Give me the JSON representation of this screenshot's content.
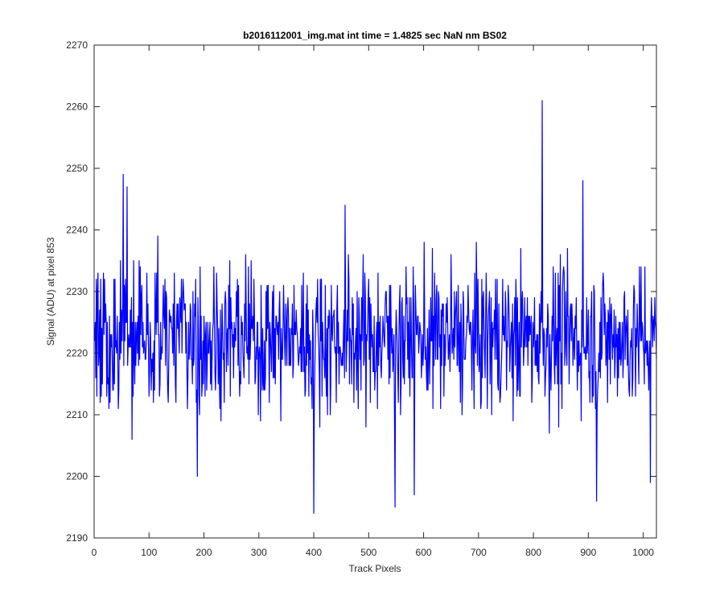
{
  "chart_data": {
    "type": "line",
    "title": "b2016112001_img.mat int time = 1.4825 sec  NaN nm BS02",
    "xlabel": "Track Pixels",
    "ylabel": "Signal (ADU) at pixel 853",
    "xlim": [
      0,
      1024
    ],
    "ylim": [
      2190,
      2270
    ],
    "xticks": [
      0,
      100,
      200,
      300,
      400,
      500,
      600,
      700,
      800,
      900,
      1000
    ],
    "yticks": [
      2190,
      2200,
      2210,
      2220,
      2230,
      2240,
      2250,
      2260,
      2270
    ],
    "grid": false,
    "series": [
      {
        "color": "#0000ff",
        "x_start": 1,
        "x_step": 1,
        "approx_mean": 2222.5,
        "noise_range": [
          2194,
          2261
        ],
        "notable_points": [
          {
            "x": 53,
            "y": 2249
          },
          {
            "x": 60,
            "y": 2247
          },
          {
            "x": 188,
            "y": 2200
          },
          {
            "x": 400,
            "y": 2194
          },
          {
            "x": 457,
            "y": 2244
          },
          {
            "x": 548,
            "y": 2195
          },
          {
            "x": 583,
            "y": 2197
          },
          {
            "x": 816,
            "y": 2261
          },
          {
            "x": 890,
            "y": 2248
          },
          {
            "x": 915,
            "y": 2196
          },
          {
            "x": 1013,
            "y": 2199
          }
        ]
      }
    ]
  },
  "colors": {
    "line": "#0000ff",
    "axes": "#262626",
    "background": "#ffffff"
  }
}
